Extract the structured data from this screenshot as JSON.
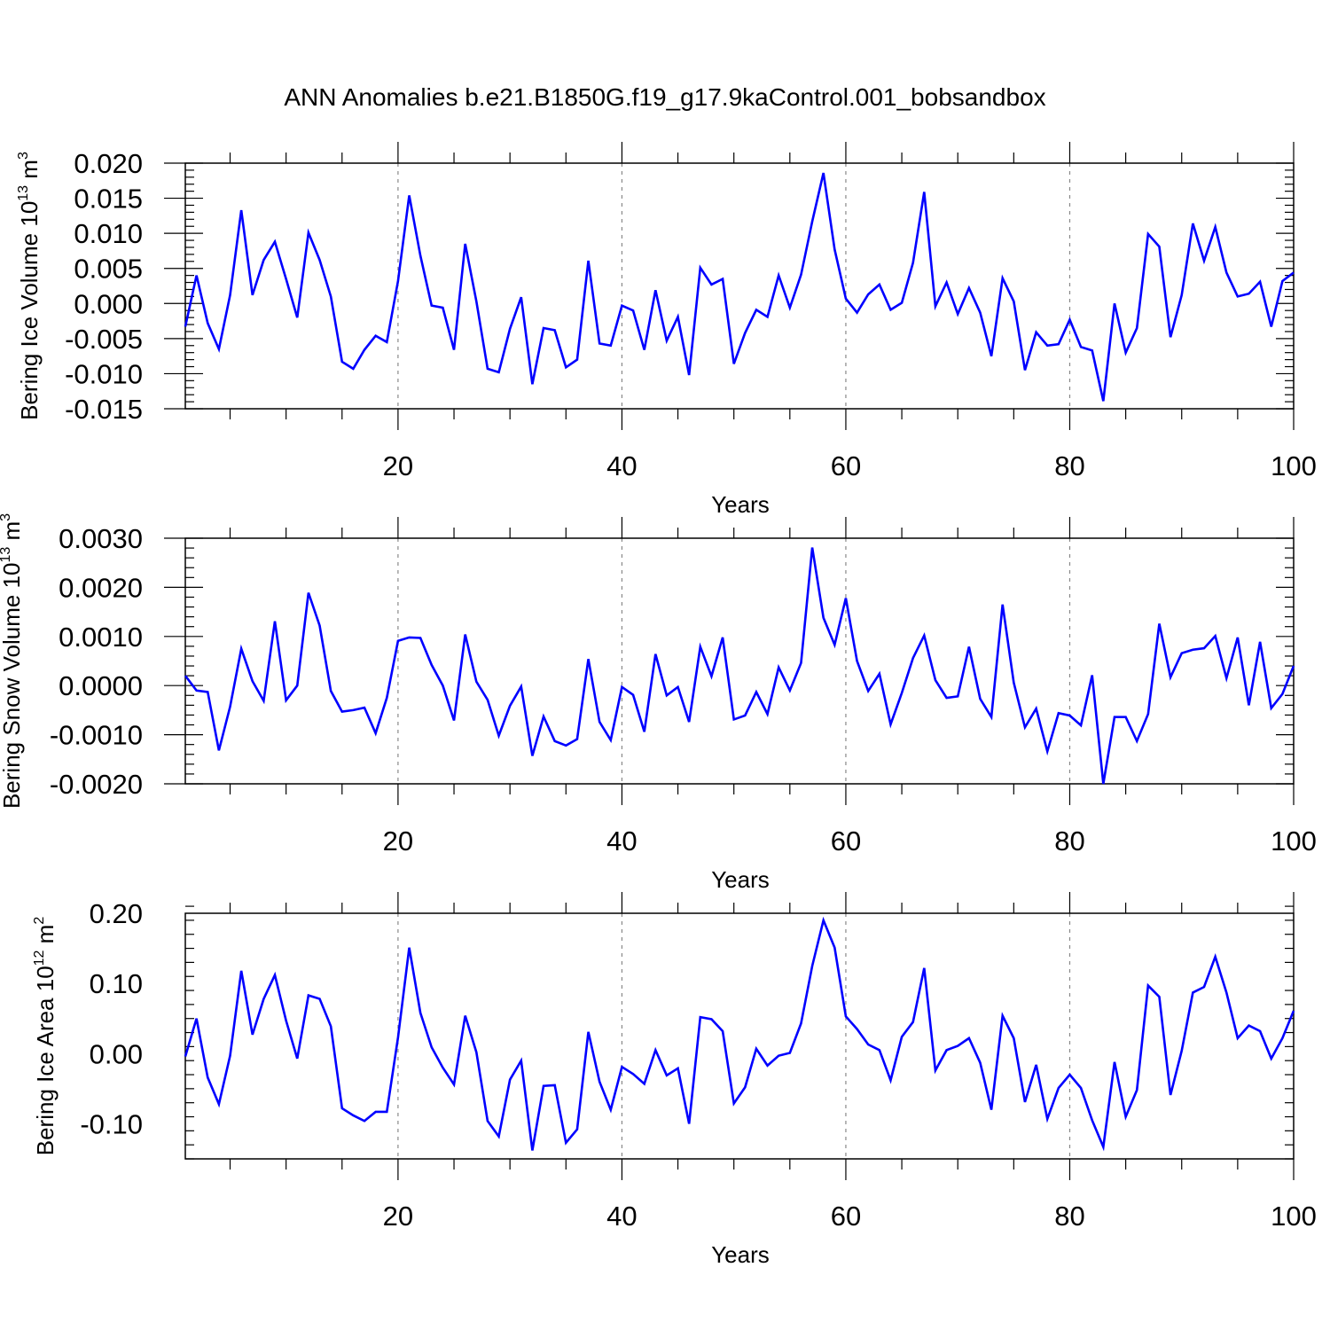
{
  "title": "ANN Anomalies b.e21.B1850G.f19_g17.9kaControl.001_bobsandbox",
  "line_color": "#0000ff",
  "chart_data": [
    {
      "type": "line",
      "ylabel_main": "Bering Ice Volume 10",
      "ylabel_exp": "13",
      "ylabel_unit": " m",
      "ylabel_unit_exp": "3",
      "xlabel": "Years",
      "xlim": [
        1,
        100
      ],
      "ylim": [
        -0.015,
        0.02
      ],
      "xticks": [
        20,
        40,
        60,
        80,
        100
      ],
      "xtick_labels": [
        "20",
        "40",
        "60",
        "80",
        "100"
      ],
      "yticks": [
        -0.015,
        -0.01,
        -0.005,
        0.0,
        0.005,
        0.01,
        0.015,
        0.02
      ],
      "ytick_labels": [
        "-0.015",
        "-0.010",
        "-0.005",
        "0.000",
        "0.005",
        "0.010",
        "0.015",
        "0.020"
      ],
      "grid": "vertical dashed at major x ticks",
      "series": [
        {
          "values": [
            -0.0033,
            0.004,
            -0.0028,
            -0.0065,
            0.0012,
            0.0133,
            0.0012,
            0.0062,
            0.0088,
            0.0035,
            -0.002,
            0.0101,
            0.0062,
            0.001,
            -0.0083,
            -0.0093,
            -0.0066,
            -0.0046,
            -0.0055,
            0.0032,
            0.0154,
            0.0068,
            -0.0003,
            -0.0006,
            -0.0066,
            0.0085,
            0.0003,
            -0.0093,
            -0.0098,
            -0.0036,
            0.0009,
            -0.0115,
            -0.0035,
            -0.0038,
            -0.0091,
            -0.008,
            0.0061,
            -0.0057,
            -0.006,
            -0.0003,
            -0.001,
            -0.0066,
            0.0019,
            -0.0053,
            -0.0019,
            -0.0102,
            0.0051,
            0.0027,
            0.0035,
            -0.0086,
            -0.0042,
            -0.0009,
            -0.0019,
            0.004,
            -0.0006,
            0.0041,
            0.0117,
            0.0186,
            0.0077,
            0.0007,
            -0.0013,
            0.0013,
            0.0027,
            -0.0009,
            0.0001,
            0.0058,
            0.0159,
            -0.0004,
            0.003,
            -0.0015,
            0.0022,
            -0.0013,
            -0.0075,
            0.0036,
            0.0003,
            -0.0095,
            -0.0041,
            -0.006,
            -0.0058,
            -0.0023,
            -0.0062,
            -0.0067,
            -0.0139,
            0.0,
            -0.007,
            -0.0035,
            0.0099,
            0.0081,
            -0.0048,
            0.0012,
            0.0114,
            0.0061,
            0.0109,
            0.0044,
            0.001,
            0.0014,
            0.0031,
            -0.0033,
            0.0032,
            0.0044
          ]
        }
      ]
    },
    {
      "type": "line",
      "ylabel_main": "Bering Snow Volume 10",
      "ylabel_exp": "13",
      "ylabel_unit": " m",
      "ylabel_unit_exp": "3",
      "xlabel": "Years",
      "xlim": [
        1,
        100
      ],
      "ylim": [
        -0.002,
        0.003
      ],
      "xticks": [
        20,
        40,
        60,
        80,
        100
      ],
      "xtick_labels": [
        "20",
        "40",
        "60",
        "80",
        "100"
      ],
      "yticks": [
        -0.002,
        -0.001,
        0.0,
        0.001,
        0.002,
        0.003
      ],
      "ytick_labels": [
        "-0.0020",
        "-0.0010",
        "0.0000",
        "0.0010",
        "0.0020",
        "0.0030"
      ],
      "grid": "vertical dashed at major x ticks",
      "series": [
        {
          "values": [
            0.0002,
            -0.0001,
            -0.00013,
            -0.00132,
            -0.00043,
            0.00075,
            9e-05,
            -0.00031,
            0.00131,
            -0.0003,
            0.0,
            0.00189,
            0.00122,
            -0.00011,
            -0.00053,
            -0.0005,
            -0.00045,
            -0.00097,
            -0.00025,
            0.00091,
            0.00098,
            0.00097,
            0.00042,
            0.0,
            -0.00071,
            0.00104,
            8e-05,
            -0.00029,
            -0.00102,
            -0.00041,
            -2e-05,
            -0.00143,
            -0.00063,
            -0.00113,
            -0.00122,
            -0.00109,
            0.00054,
            -0.00074,
            -0.00111,
            -3e-05,
            -0.00019,
            -0.00094,
            0.00064,
            -0.0002,
            -3e-05,
            -0.00074,
            0.00079,
            0.00019,
            0.00098,
            -0.00069,
            -0.00061,
            -0.00013,
            -0.00058,
            0.00037,
            -0.0001,
            0.00046,
            0.00281,
            0.00138,
            0.00083,
            0.00178,
            0.0005,
            -0.00011,
            0.00024,
            -0.00079,
            -0.00015,
            0.00056,
            0.00102,
            0.00011,
            -0.00025,
            -0.00022,
            0.00079,
            -0.00027,
            -0.00064,
            0.00165,
            6e-05,
            -0.00085,
            -0.00047,
            -0.00134,
            -0.00056,
            -0.00061,
            -0.00081,
            0.00021,
            -0.002,
            -0.00064,
            -0.00064,
            -0.00113,
            -0.00058,
            0.00126,
            0.00017,
            0.00066,
            0.00073,
            0.00076,
            0.00101,
            0.00015,
            0.00098,
            -0.0004,
            0.00089,
            -0.00046,
            -0.00017,
            0.0004
          ]
        }
      ]
    },
    {
      "type": "line",
      "ylabel_main": "Bering Ice Area 10",
      "ylabel_exp": "12",
      "ylabel_unit": " m",
      "ylabel_unit_exp": "2",
      "xlabel": "Years",
      "xlim": [
        1,
        100
      ],
      "ylim": [
        -0.15,
        0.2
      ],
      "xticks": [
        20,
        40,
        60,
        80,
        100
      ],
      "xtick_labels": [
        "20",
        "40",
        "60",
        "80",
        "100"
      ],
      "yticks": [
        -0.1,
        0.0,
        0.1,
        0.2
      ],
      "ytick_labels": [
        "-0.10",
        "0.00",
        "0.10",
        "0.20"
      ],
      "grid": "vertical dashed at major x ticks",
      "series": [
        {
          "values": [
            -0.004,
            0.05,
            -0.034,
            -0.072,
            -0.003,
            0.118,
            0.027,
            0.078,
            0.112,
            0.047,
            -0.007,
            0.083,
            0.078,
            0.039,
            -0.078,
            -0.088,
            -0.096,
            -0.083,
            -0.083,
            0.023,
            0.151,
            0.058,
            0.009,
            -0.02,
            -0.044,
            0.054,
            0.002,
            -0.096,
            -0.118,
            -0.037,
            -0.01,
            -0.138,
            -0.046,
            -0.045,
            -0.127,
            -0.108,
            0.031,
            -0.04,
            -0.08,
            -0.019,
            -0.029,
            -0.043,
            0.005,
            -0.031,
            -0.021,
            -0.1,
            0.052,
            0.049,
            0.032,
            -0.071,
            -0.048,
            0.007,
            -0.017,
            -0.003,
            0.001,
            0.043,
            0.125,
            0.19,
            0.151,
            0.053,
            0.035,
            0.013,
            0.005,
            -0.038,
            0.024,
            0.045,
            0.122,
            -0.024,
            0.005,
            0.011,
            0.022,
            -0.013,
            -0.08,
            0.054,
            0.022,
            -0.069,
            -0.016,
            -0.093,
            -0.049,
            -0.03,
            -0.049,
            -0.095,
            -0.133,
            -0.012,
            -0.09,
            -0.052,
            0.097,
            0.081,
            -0.059,
            0.004,
            0.087,
            0.095,
            0.138,
            0.087,
            0.022,
            0.04,
            0.032,
            -0.007,
            0.022,
            0.061
          ]
        }
      ]
    }
  ]
}
